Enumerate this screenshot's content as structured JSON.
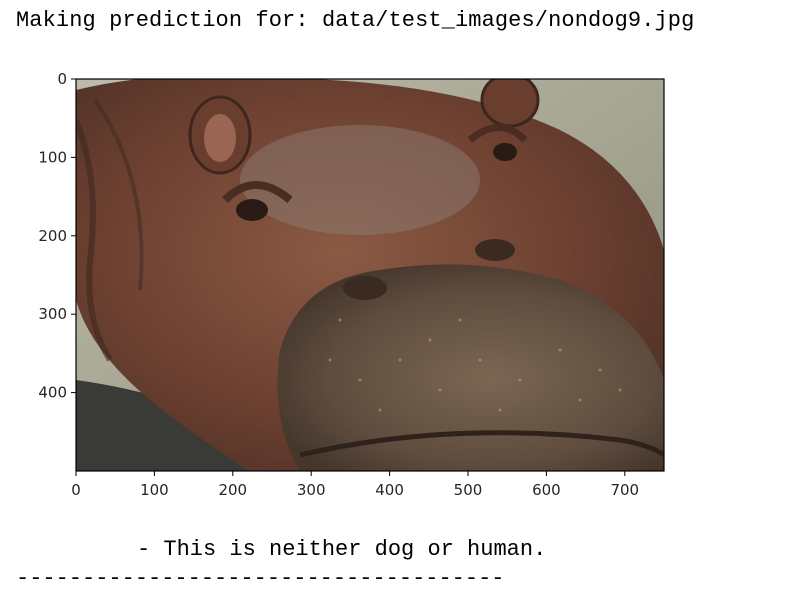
{
  "output": {
    "header": "Making prediction for: data/test_images/nondog9.jpg",
    "result": "- This is neither dog or human.",
    "separator": "-------------------------------------"
  },
  "figure": {
    "image_subject": "hippopotamus-photo",
    "image_colors": {
      "hide_dark": "#5a3a2c",
      "hide_mid": "#7a4a36",
      "hide_light": "#9a6d56",
      "snout": "#6b5a4a",
      "water": "#3a3a36",
      "background_foliage": "#c9d2c0"
    },
    "x_axis": {
      "range": [
        0,
        750
      ],
      "ticks": [
        "0",
        "100",
        "200",
        "300",
        "400",
        "500",
        "600",
        "700"
      ]
    },
    "y_axis": {
      "range": [
        500,
        0
      ],
      "ticks": [
        "0",
        "100",
        "200",
        "300",
        "400"
      ]
    }
  }
}
